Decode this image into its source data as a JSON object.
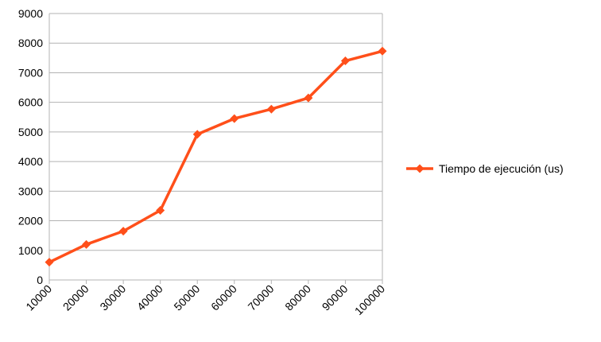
{
  "chart_data": {
    "type": "line",
    "title": "",
    "xlabel": "",
    "ylabel": "",
    "categories": [
      "10000",
      "20000",
      "30000",
      "40000",
      "50000",
      "60000",
      "70000",
      "80000",
      "90000",
      "100000"
    ],
    "series": [
      {
        "name": "Tiempo de ejecución (us)",
        "color": "#ff4f1a",
        "marker": "diamond",
        "values": [
          600,
          1200,
          1650,
          2350,
          4920,
          5450,
          5770,
          6150,
          7400,
          7730
        ]
      }
    ],
    "ylim": [
      0,
      9000
    ],
    "yticks": [
      "0",
      "1000",
      "2000",
      "3000",
      "4000",
      "5000",
      "6000",
      "7000",
      "8000",
      "9000"
    ],
    "grid": true,
    "legend_position": "right",
    "x_tick_rotation": "-45"
  }
}
